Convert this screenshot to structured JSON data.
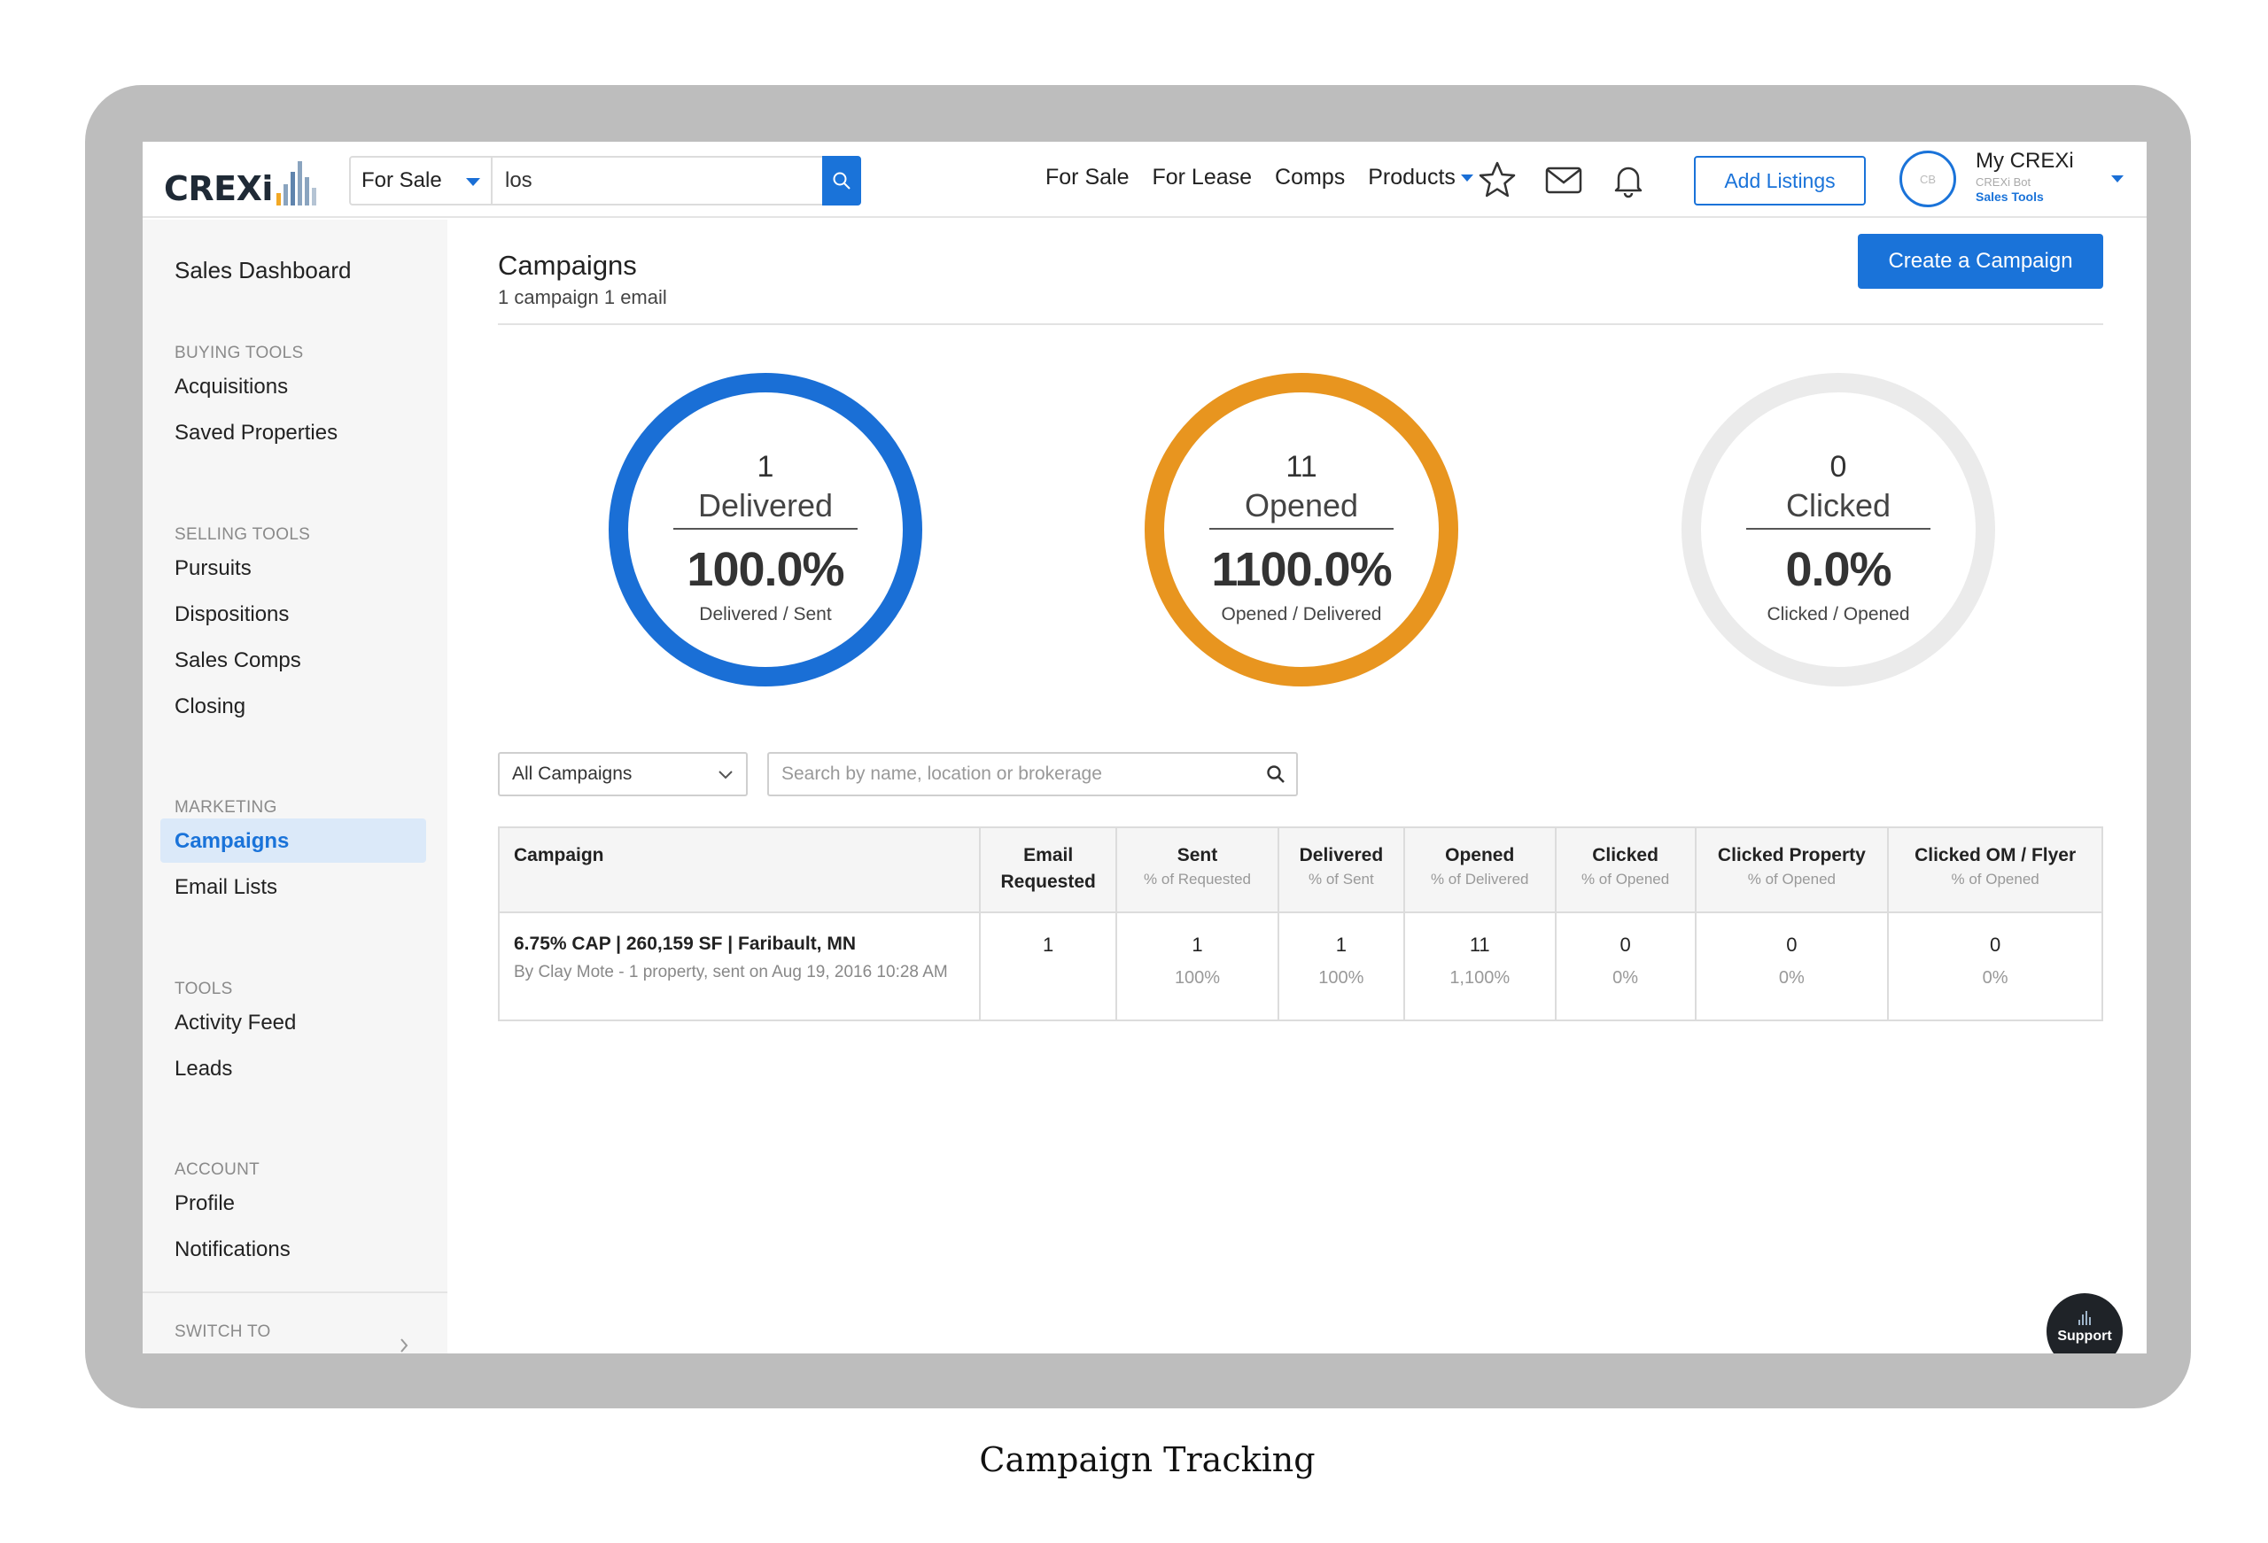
{
  "header": {
    "logo_text": "CREXi",
    "scope_label": "For Sale",
    "search_value": "los",
    "nav": [
      "For Sale",
      "For Lease",
      "Comps"
    ],
    "products_label": "Products",
    "add_listings_label": "Add Listings",
    "avatar_initials": "CB",
    "account_name": "My CREXi",
    "account_sub": "CREXi Bot",
    "account_role": "Sales Tools",
    "accent_color": "#1a73d9"
  },
  "sidebar": {
    "title": "Sales Dashboard",
    "sections": [
      {
        "heading": "BUYING TOOLS",
        "items": [
          "Acquisitions",
          "Saved Properties"
        ]
      },
      {
        "heading": "SELLING TOOLS",
        "items": [
          "Pursuits",
          "Dispositions",
          "Sales Comps",
          "Closing"
        ]
      },
      {
        "heading": "MARKETING",
        "items": [
          "Campaigns",
          "Email Lists"
        ]
      },
      {
        "heading": "TOOLS",
        "items": [
          "Activity Feed",
          "Leads"
        ]
      },
      {
        "heading": "ACCOUNT",
        "items": [
          "Profile",
          "Notifications"
        ]
      }
    ],
    "active_item": "Campaigns",
    "switch_label": "SWITCH TO"
  },
  "main": {
    "title": "Campaigns",
    "subtitle": "1 campaign  1 email",
    "create_button": "Create a Campaign",
    "stats": [
      {
        "count": "1",
        "label": "Delivered",
        "percent": "100.0%",
        "ratio": "Delivered / Sent",
        "color": "#1a6fd6",
        "fill": 1.0
      },
      {
        "count": "11",
        "label": "Opened",
        "percent": "1100.0%",
        "ratio": "Opened / Delivered",
        "color": "#e8951f",
        "fill": 1.0
      },
      {
        "count": "0",
        "label": "Clicked",
        "percent": "0.0%",
        "ratio": "Clicked / Opened",
        "color": "#ebebeb",
        "fill": 0.0
      }
    ],
    "filter_value": "All Campaigns",
    "search_placeholder": "Search by name, location or brokerage"
  },
  "table": {
    "columns": [
      {
        "title": "Campaign",
        "sub": ""
      },
      {
        "title": "Email Requested",
        "sub": ""
      },
      {
        "title": "Sent",
        "sub": "% of Requested"
      },
      {
        "title": "Delivered",
        "sub": "% of Sent"
      },
      {
        "title": "Opened",
        "sub": "% of Delivered"
      },
      {
        "title": "Clicked",
        "sub": "% of Opened"
      },
      {
        "title": "Clicked Property",
        "sub": "% of Opened"
      },
      {
        "title": "Clicked OM / Flyer",
        "sub": "% of Opened"
      }
    ],
    "rows": [
      {
        "name": "6.75% CAP | 260,159 SF | Faribault, MN",
        "meta": "By Clay Mote - 1 property, sent on Aug 19, 2016 10:28 AM",
        "requested": "1",
        "cells": [
          {
            "value": "1",
            "pct": "100%"
          },
          {
            "value": "1",
            "pct": "100%"
          },
          {
            "value": "11",
            "pct": "1,100%"
          },
          {
            "value": "0",
            "pct": "0%"
          },
          {
            "value": "0",
            "pct": "0%"
          },
          {
            "value": "0",
            "pct": "0%"
          }
        ]
      }
    ]
  },
  "support_label": "Support",
  "caption": "Campaign Tracking"
}
